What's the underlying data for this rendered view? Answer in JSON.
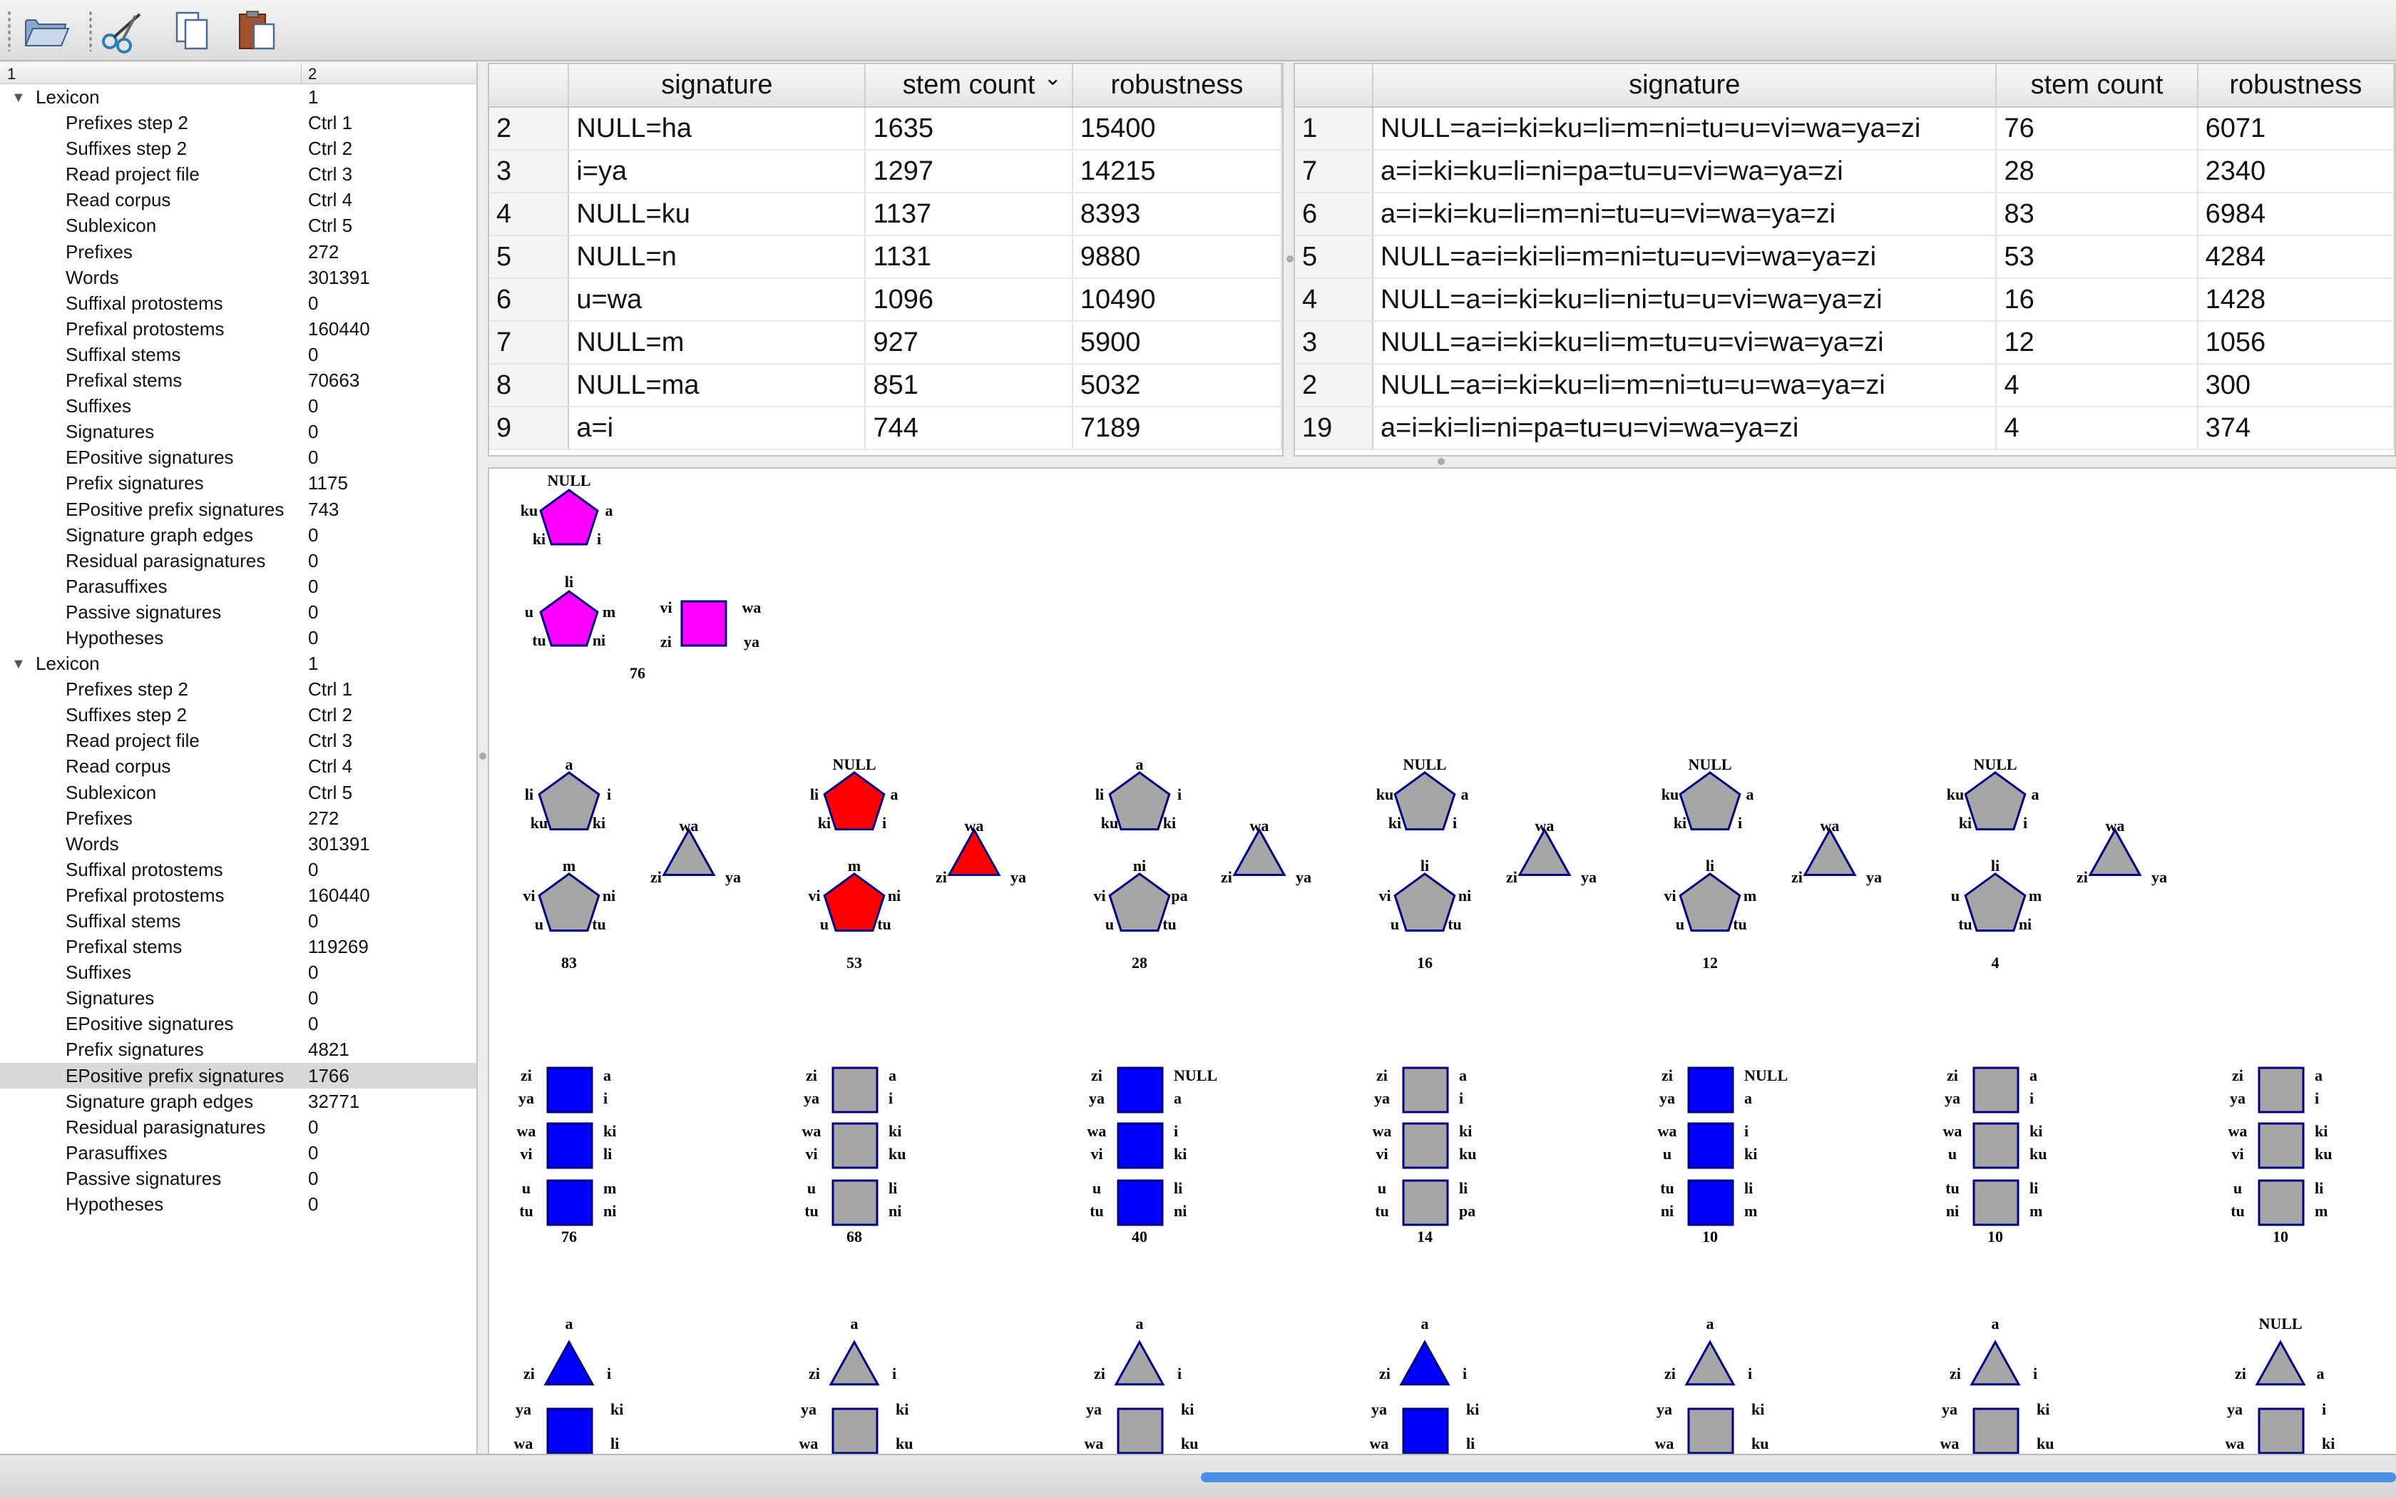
{
  "toolbar": {
    "buttons": [
      {
        "name": "open-folder-icon"
      },
      {
        "name": "scissors-icon"
      },
      {
        "name": "copy-icon"
      },
      {
        "name": "paste-icon"
      }
    ]
  },
  "tree": {
    "headers": [
      "1",
      "2"
    ],
    "sections": [
      {
        "label": "Lexicon",
        "value": "1",
        "items": [
          {
            "label": "Prefixes step 2",
            "value": "Ctrl 1"
          },
          {
            "label": "Suffixes step 2",
            "value": "Ctrl 2"
          },
          {
            "label": "Read project file",
            "value": "Ctrl 3"
          },
          {
            "label": "Read corpus",
            "value": "Ctrl 4"
          },
          {
            "label": "Sublexicon",
            "value": "Ctrl 5"
          },
          {
            "label": "Prefixes",
            "value": "272"
          },
          {
            "label": "Words",
            "value": "301391"
          },
          {
            "label": "Suffixal protostems",
            "value": "0"
          },
          {
            "label": "Prefixal protostems",
            "value": "160440"
          },
          {
            "label": "Suffixal stems",
            "value": "0"
          },
          {
            "label": "Prefixal stems",
            "value": "70663"
          },
          {
            "label": "Suffixes",
            "value": "0"
          },
          {
            "label": "Signatures",
            "value": "0"
          },
          {
            "label": "EPositive signatures",
            "value": "0"
          },
          {
            "label": "Prefix signatures",
            "value": "1175"
          },
          {
            "label": "EPositive prefix signatures",
            "value": "743"
          },
          {
            "label": "Signature graph edges",
            "value": "0"
          },
          {
            "label": "Residual parasignatures",
            "value": "0"
          },
          {
            "label": "Parasuffixes",
            "value": "0"
          },
          {
            "label": "Passive signatures",
            "value": "0"
          },
          {
            "label": "Hypotheses",
            "value": "0"
          }
        ]
      },
      {
        "label": "Lexicon",
        "value": "1",
        "items": [
          {
            "label": "Prefixes step 2",
            "value": "Ctrl 1"
          },
          {
            "label": "Suffixes step 2",
            "value": "Ctrl 2"
          },
          {
            "label": "Read project file",
            "value": "Ctrl 3"
          },
          {
            "label": "Read corpus",
            "value": "Ctrl 4"
          },
          {
            "label": "Sublexicon",
            "value": "Ctrl 5"
          },
          {
            "label": "Prefixes",
            "value": "272"
          },
          {
            "label": "Words",
            "value": "301391"
          },
          {
            "label": "Suffixal protostems",
            "value": "0"
          },
          {
            "label": "Prefixal protostems",
            "value": "160440"
          },
          {
            "label": "Suffixal stems",
            "value": "0"
          },
          {
            "label": "Prefixal stems",
            "value": "119269"
          },
          {
            "label": "Suffixes",
            "value": "0"
          },
          {
            "label": "Signatures",
            "value": "0"
          },
          {
            "label": "EPositive signatures",
            "value": "0"
          },
          {
            "label": "Prefix signatures",
            "value": "4821"
          },
          {
            "label": "EPositive prefix signatures",
            "value": "1766",
            "selected": true
          },
          {
            "label": "Signature graph edges",
            "value": "32771"
          },
          {
            "label": "Residual parasignatures",
            "value": "0"
          },
          {
            "label": "Parasuffixes",
            "value": "0"
          },
          {
            "label": "Passive signatures",
            "value": "0"
          },
          {
            "label": "Hypotheses",
            "value": "0"
          }
        ]
      }
    ]
  },
  "table_left": {
    "columns": [
      "",
      "signature",
      "stem count",
      "robustness"
    ],
    "sort_indicator": "⌄",
    "rows": [
      [
        "2",
        "NULL=ha",
        "1635",
        "15400"
      ],
      [
        "3",
        "i=ya",
        "1297",
        "14215"
      ],
      [
        "4",
        "NULL=ku",
        "1137",
        "8393"
      ],
      [
        "5",
        "NULL=n",
        "1131",
        "9880"
      ],
      [
        "6",
        "u=wa",
        "1096",
        "10490"
      ],
      [
        "7",
        "NULL=m",
        "927",
        "5900"
      ],
      [
        "8",
        "NULL=ma",
        "851",
        "5032"
      ],
      [
        "9",
        "a=i",
        "744",
        "7189"
      ]
    ]
  },
  "table_right": {
    "columns": [
      "",
      "signature",
      "stem count",
      "robustness"
    ],
    "rows": [
      [
        "1",
        "NULL=a=i=ki=ku=li=m=ni=tu=u=vi=wa=ya=zi",
        "76",
        "6071"
      ],
      [
        "7",
        "a=i=ki=ku=li=ni=pa=tu=u=vi=wa=ya=zi",
        "28",
        "2340"
      ],
      [
        "6",
        "a=i=ki=ku=li=m=ni=tu=u=vi=wa=ya=zi",
        "83",
        "6984"
      ],
      [
        "5",
        "NULL=a=i=ki=li=m=ni=tu=u=vi=wa=ya=zi",
        "53",
        "4284"
      ],
      [
        "4",
        "NULL=a=i=ki=ku=li=ni=tu=u=vi=wa=ya=zi",
        "16",
        "1428"
      ],
      [
        "3",
        "NULL=a=i=ki=ku=li=m=tu=u=vi=wa=ya=zi",
        "12",
        "1056"
      ],
      [
        "2",
        "NULL=a=i=ki=ku=li=m=ni=tu=u=wa=ya=zi",
        "4",
        "300"
      ],
      [
        "19",
        "a=i=ki=li=ni=pa=tu=u=vi=wa=ya=zi",
        "4",
        "374"
      ]
    ]
  },
  "graph": {
    "colors": {
      "magenta": "#ff00ff",
      "red": "#ff0000",
      "gray": "#a6a6a6",
      "blue": "#0000ff",
      "stroke": "#000080"
    },
    "top_group": {
      "pent1": [
        "NULL",
        "a",
        "i",
        "ki",
        "ku"
      ],
      "pent2": [
        "li",
        "m",
        "ni",
        "tu",
        "u"
      ],
      "square": [
        "vi",
        "wa",
        "ya",
        "zi"
      ],
      "count": "76",
      "color": "magenta"
    },
    "pent_groups": [
      {
        "p1": [
          "a",
          "i",
          "ki",
          "ku",
          "li"
        ],
        "p2": [
          "m",
          "ni",
          "tu",
          "u",
          "vi"
        ],
        "tri": [
          "wa",
          "ya",
          "zi"
        ],
        "count": "83",
        "color": "gray"
      },
      {
        "p1": [
          "NULL",
          "a",
          "i",
          "ki",
          "li"
        ],
        "p2": [
          "m",
          "ni",
          "tu",
          "u",
          "vi"
        ],
        "tri": [
          "wa",
          "ya",
          "zi"
        ],
        "count": "53",
        "color": "red"
      },
      {
        "p1": [
          "a",
          "i",
          "ki",
          "ku",
          "li"
        ],
        "p2": [
          "ni",
          "pa",
          "tu",
          "u",
          "vi"
        ],
        "tri": [
          "wa",
          "ya",
          "zi"
        ],
        "count": "28",
        "color": "gray"
      },
      {
        "p1": [
          "NULL",
          "a",
          "i",
          "ki",
          "ku"
        ],
        "p2": [
          "li",
          "ni",
          "tu",
          "u",
          "vi"
        ],
        "tri": [
          "wa",
          "ya",
          "zi"
        ],
        "count": "16",
        "color": "gray"
      },
      {
        "p1": [
          "NULL",
          "a",
          "i",
          "ki",
          "ku"
        ],
        "p2": [
          "li",
          "m",
          "tu",
          "u",
          "vi"
        ],
        "tri": [
          "wa",
          "ya",
          "zi"
        ],
        "count": "12",
        "color": "gray"
      },
      {
        "p1": [
          "NULL",
          "a",
          "i",
          "ki",
          "ku"
        ],
        "p2": [
          "li",
          "m",
          "ni",
          "tu",
          "u"
        ],
        "tri": [
          "wa",
          "ya",
          "zi"
        ],
        "count": "4",
        "color": "gray"
      }
    ],
    "square_groups": [
      {
        "color": "blue",
        "squares": [
          [
            "zi",
            "ya",
            "a",
            "i"
          ],
          [
            "wa",
            "vi",
            "ki",
            "li"
          ],
          [
            "u",
            "tu",
            "m",
            "ni"
          ]
        ],
        "count": "76"
      },
      {
        "color": "gray",
        "squares": [
          [
            "zi",
            "ya",
            "a",
            "i"
          ],
          [
            "wa",
            "vi",
            "ki",
            "ku"
          ],
          [
            "u",
            "tu",
            "li",
            "ni"
          ]
        ],
        "count": "68"
      },
      {
        "color": "blue",
        "squares": [
          [
            "zi",
            "ya",
            "NULL",
            "a"
          ],
          [
            "wa",
            "vi",
            "i",
            "ki"
          ],
          [
            "u",
            "tu",
            "li",
            "ni"
          ]
        ],
        "count": "40"
      },
      {
        "color": "gray",
        "squares": [
          [
            "zi",
            "ya",
            "a",
            "i"
          ],
          [
            "wa",
            "vi",
            "ki",
            "ku"
          ],
          [
            "u",
            "tu",
            "li",
            "pa"
          ]
        ],
        "count": "14"
      },
      {
        "color": "blue",
        "squares": [
          [
            "zi",
            "ya",
            "NULL",
            "a"
          ],
          [
            "wa",
            "u",
            "i",
            "ki"
          ],
          [
            "tu",
            "ni",
            "li",
            "m"
          ]
        ],
        "count": "10"
      },
      {
        "color": "gray",
        "squares": [
          [
            "zi",
            "ya",
            "a",
            "i"
          ],
          [
            "wa",
            "u",
            "ki",
            "ku"
          ],
          [
            "tu",
            "ni",
            "li",
            "m"
          ]
        ],
        "count": "10"
      },
      {
        "color": "gray",
        "squares": [
          [
            "zi",
            "ya",
            "a",
            "i"
          ],
          [
            "wa",
            "vi",
            "ki",
            "ku"
          ],
          [
            "u",
            "tu",
            "li",
            "m"
          ]
        ],
        "count": "10"
      }
    ],
    "tri_groups": [
      {
        "color": "blue",
        "top": "a",
        "l": "zi",
        "r": "i",
        "l2": "ya",
        "r2": "ki",
        "l3": "wa",
        "r3": "li",
        "sqcolor": "blue"
      },
      {
        "color": "gray",
        "top": "a",
        "l": "zi",
        "r": "i",
        "l2": "ya",
        "r2": "ki",
        "l3": "wa",
        "r3": "ku",
        "sqcolor": "gray"
      },
      {
        "color": "gray",
        "top": "a",
        "l": "zi",
        "r": "i",
        "l2": "ya",
        "r2": "ki",
        "l3": "wa",
        "r3": "ku",
        "sqcolor": "gray"
      },
      {
        "color": "blue",
        "top": "a",
        "l": "zi",
        "r": "i",
        "l2": "ya",
        "r2": "ki",
        "l3": "wa",
        "r3": "li",
        "sqcolor": "blue"
      },
      {
        "color": "gray",
        "top": "a",
        "l": "zi",
        "r": "i",
        "l2": "ya",
        "r2": "ki",
        "l3": "wa",
        "r3": "ku",
        "sqcolor": "gray"
      },
      {
        "color": "gray",
        "top": "a",
        "l": "zi",
        "r": "i",
        "l2": "ya",
        "r2": "ki",
        "l3": "wa",
        "r3": "ku",
        "sqcolor": "gray"
      },
      {
        "color": "gray",
        "top": "NULL",
        "l": "zi",
        "r": "a",
        "l2": "ya",
        "r2": "i",
        "l3": "wa",
        "r3": "ki",
        "sqcolor": "gray"
      }
    ]
  }
}
